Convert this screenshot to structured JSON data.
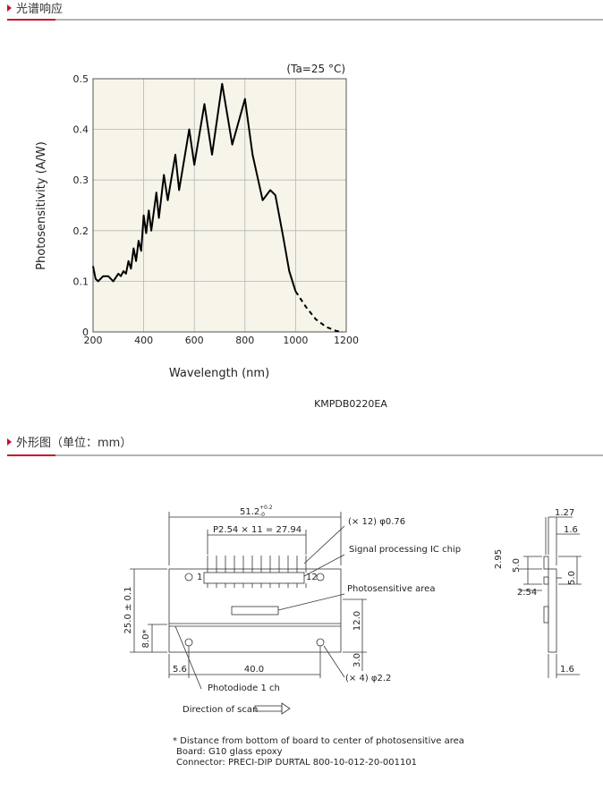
{
  "section1_title": "光谱响应",
  "chart_data": {
    "type": "line",
    "annotation": "(Ta=25 °C)",
    "x_label": "Wavelength (nm)",
    "y_label": "Photosensitivity (A/W)",
    "x": [
      200,
      210,
      220,
      240,
      260,
      280,
      300,
      310,
      320,
      330,
      340,
      350,
      360,
      370,
      380,
      390,
      400,
      410,
      420,
      430,
      450,
      460,
      480,
      495,
      525,
      540,
      580,
      600,
      640,
      670,
      710,
      750,
      800,
      830,
      870,
      900,
      920,
      950,
      975,
      1000,
      1040,
      1080,
      1120,
      1160,
      1185
    ],
    "series": [
      {
        "color": "#000000",
        "dash": false,
        "values": [
          0.13,
          0.105,
          0.1,
          0.11,
          0.11,
          0.1,
          0.115,
          0.11,
          0.12,
          0.115,
          0.14,
          0.125,
          0.165,
          0.14,
          0.18,
          0.16,
          0.23,
          0.195,
          0.24,
          0.2,
          0.275,
          0.225,
          0.31,
          0.26,
          0.35,
          0.28,
          0.4,
          0.33,
          0.45,
          0.35,
          0.49,
          0.37,
          0.46,
          0.35,
          0.26,
          0.28,
          0.27,
          0.19,
          0.12,
          0.08,
          null,
          null,
          null,
          null,
          null
        ]
      },
      {
        "color": "#000000",
        "dash": true,
        "values": [
          null,
          null,
          null,
          null,
          null,
          null,
          null,
          null,
          null,
          null,
          null,
          null,
          null,
          null,
          null,
          null,
          null,
          null,
          null,
          null,
          null,
          null,
          null,
          null,
          null,
          null,
          null,
          null,
          null,
          null,
          null,
          null,
          null,
          null,
          null,
          null,
          null,
          null,
          null,
          0.08,
          0.05,
          0.025,
          0.01,
          0.002,
          0
        ]
      }
    ],
    "xlim": [
      200,
      1200
    ],
    "ylim": [
      0,
      0.5
    ],
    "xticks": [
      200,
      400,
      600,
      800,
      1000,
      1200
    ],
    "yticks": [
      0,
      0.1,
      0.2,
      0.3,
      0.4,
      0.5
    ],
    "grid": true,
    "background": "#f7f5ea"
  },
  "figure_code": "KMPDB0220EA",
  "section2_title": "外形图（单位：mm）",
  "drawing": {
    "width_dim": "51.2",
    "width_tol_upper": "+0.2",
    "width_tol_lower": "-0",
    "pins": "(× 12) φ0.76",
    "pitch": "P2.54 × 11 = 27.94",
    "ic_chip": "Signal processing IC chip",
    "photosensitive_area": "Photosensitive area",
    "pin_first": "1",
    "pin_last": "12",
    "height_dim": "25.0 ± 0.1",
    "area_offset": "8.0*",
    "hole_pitch_v": "12.0",
    "hole_offset_bottom": "3.0",
    "hole_offset_left": "5.6",
    "hole_pitch_h": "40.0",
    "holes": "(× 4) φ2.2",
    "photodiode": "Photodiode 1 ch",
    "scan": "Direction of scan",
    "side_top_a": "1.27",
    "side_top_b": "1.6",
    "side_left_a": "2.95",
    "side_left_b": "5.0",
    "side_right": "5.0",
    "side_pin": "2.54",
    "side_bottom": "1.6",
    "notes": [
      "* Distance from bottom of board to center of photosensitive area",
      "Board: G10 glass epoxy",
      "Connector: PRECI-DIP DURTAL 800-10-012-20-001101"
    ]
  }
}
